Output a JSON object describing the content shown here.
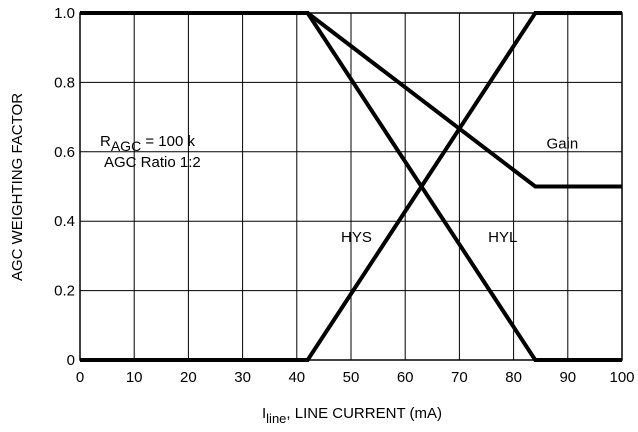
{
  "chart_data": {
    "type": "line",
    "title": "",
    "xlabel": {
      "main": "I",
      "sub": "line",
      "rest": ", LINE CURRENT (mA)"
    },
    "ylabel": "AGC WEIGHTING FACTOR",
    "xlim": [
      0,
      100
    ],
    "ylim": [
      0,
      1.0
    ],
    "x_ticks": [
      "0",
      "10",
      "20",
      "30",
      "40",
      "50",
      "60",
      "70",
      "80",
      "90",
      "100"
    ],
    "y_ticks": [
      "0",
      "0.2",
      "0.4",
      "0.6",
      "0.8",
      "1.0"
    ],
    "grid": true,
    "annotations": {
      "r_agc": {
        "main": "R",
        "sub": "AGC",
        "rest": " = 100 k"
      },
      "agc_ratio": "AGC Ratio 1:2"
    },
    "series": [
      {
        "name": "HYS",
        "x": [
          0,
          42,
          84,
          100
        ],
        "y": [
          0,
          0,
          1.0,
          1.0
        ]
      },
      {
        "name": "HYL",
        "x": [
          0,
          42,
          84,
          100
        ],
        "y": [
          1.0,
          1.0,
          0,
          0
        ]
      },
      {
        "name": "Gain",
        "x": [
          0,
          42,
          84,
          100
        ],
        "y": [
          1.0,
          1.0,
          0.5,
          0.5
        ]
      }
    ]
  }
}
